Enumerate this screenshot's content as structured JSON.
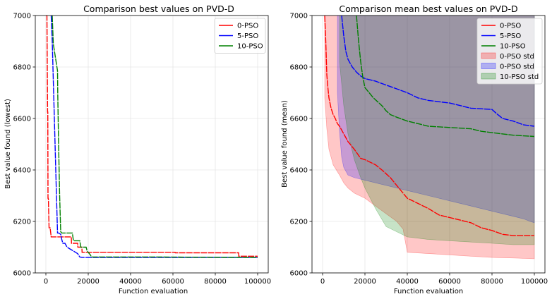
{
  "chart_data": [
    {
      "type": "line",
      "title": "Comparison best values on PVD-D",
      "xlabel": "Function evaluation",
      "ylabel": "Best value found (lowest)",
      "xlim": [
        -5000,
        105000
      ],
      "ylim": [
        6000,
        7000
      ],
      "xticks": [
        "0",
        "20000",
        "40000",
        "60000",
        "80000",
        "100000"
      ],
      "yticks": [
        "6000",
        "6200",
        "6400",
        "6600",
        "6800",
        "7000"
      ],
      "grid": true,
      "legend_position": "top-right",
      "series": [
        {
          "name": "0-PSO",
          "color": "#ff0000",
          "x": [
            0,
            500,
            800,
            900,
            1000,
            1100,
            1200,
            1500,
            2000,
            2500,
            12000,
            12100,
            15000,
            15100,
            17000,
            17100,
            61000,
            61100,
            91000,
            91100,
            100000
          ],
          "y": [
            7000,
            7000,
            6625,
            6625,
            6290,
            6290,
            6285,
            6175,
            6175,
            6140,
            6140,
            6115,
            6115,
            6100,
            6100,
            6080,
            6080,
            6078,
            6078,
            6065,
            6065
          ]
        },
        {
          "name": "5-PSO",
          "color": "#0000ff",
          "x": [
            2500,
            3000,
            3500,
            4000,
            4500,
            5000,
            5500,
            6000,
            7000,
            7500,
            8000,
            9000,
            10000,
            12000,
            14000,
            15000,
            16000,
            17000,
            18000,
            20000,
            30000,
            50000,
            60000,
            90000,
            98000,
            100000
          ],
          "y": [
            7000,
            6900,
            6750,
            6600,
            6450,
            6300,
            6155,
            6155,
            6150,
            6130,
            6115,
            6115,
            6100,
            6090,
            6080,
            6075,
            6062,
            6060,
            6060,
            6060,
            6060,
            6060,
            6060,
            6060,
            6060,
            6060
          ]
        },
        {
          "name": "10-PSO",
          "color": "#008000",
          "x": [
            3000,
            3500,
            5500,
            5600,
            6000,
            6500,
            7000,
            7500,
            12500,
            13000,
            16000,
            16500,
            19000,
            19500,
            21000,
            21500,
            50000,
            90000,
            100000
          ],
          "y": [
            7000,
            6890,
            6785,
            6700,
            6500,
            6300,
            6160,
            6155,
            6155,
            6125,
            6125,
            6100,
            6100,
            6085,
            6070,
            6062,
            6062,
            6060,
            6060
          ]
        }
      ]
    },
    {
      "type": "line",
      "title": "Comparison mean best values on PVD-D",
      "xlabel": "Function evaluation",
      "ylabel": "Best value found (mean)",
      "xlim": [
        -5000,
        105000
      ],
      "ylim": [
        6000,
        7000
      ],
      "xticks": [
        "0",
        "20000",
        "40000",
        "60000",
        "80000",
        "100000"
      ],
      "yticks": [
        "6000",
        "6200",
        "6400",
        "6600",
        "6800",
        "7000"
      ],
      "grid": true,
      "legend_position": "top-right",
      "series": [
        {
          "name": "0-PSO",
          "color": "#ff0000",
          "x": [
            1000,
            1500,
            2000,
            2500,
            3000,
            4000,
            5000,
            6000,
            7000,
            8000,
            10000,
            12000,
            15000,
            18000,
            20000,
            25000,
            28000,
            32000,
            35000,
            40000,
            45000,
            50000,
            55000,
            60000,
            70000,
            75000,
            80000,
            85000,
            90000,
            100000
          ],
          "y": [
            7000,
            6900,
            6770,
            6720,
            6680,
            6640,
            6615,
            6600,
            6580,
            6570,
            6540,
            6510,
            6480,
            6445,
            6440,
            6420,
            6400,
            6370,
            6340,
            6290,
            6270,
            6250,
            6225,
            6215,
            6195,
            6175,
            6165,
            6150,
            6145,
            6145
          ]
        },
        {
          "name": "5-PSO",
          "color": "#0000ff",
          "x": [
            9000,
            10000,
            11000,
            12000,
            14000,
            16000,
            18000,
            20000,
            25000,
            30000,
            35000,
            40000,
            45000,
            50000,
            55000,
            60000,
            70000,
            80000,
            82000,
            85000,
            90000,
            95000,
            100000
          ],
          "y": [
            7000,
            6920,
            6860,
            6830,
            6800,
            6780,
            6765,
            6755,
            6745,
            6730,
            6715,
            6700,
            6680,
            6670,
            6665,
            6660,
            6640,
            6635,
            6620,
            6600,
            6590,
            6575,
            6570
          ]
        },
        {
          "name": "10-PSO",
          "color": "#008000",
          "x": [
            16000,
            17000,
            18000,
            19000,
            20000,
            22000,
            24000,
            26000,
            28000,
            30000,
            32000,
            35000,
            40000,
            45000,
            50000,
            60000,
            70000,
            75000,
            80000,
            85000,
            90000,
            100000
          ],
          "y": [
            7000,
            6900,
            6820,
            6760,
            6720,
            6700,
            6680,
            6665,
            6650,
            6630,
            6615,
            6605,
            6590,
            6580,
            6570,
            6565,
            6560,
            6550,
            6545,
            6540,
            6535,
            6530
          ]
        }
      ],
      "std_bands": [
        {
          "name": "0-PSO std",
          "color": "#ff0000",
          "x": [
            1000,
            2000,
            3000,
            5000,
            8000,
            10000,
            12000,
            15000,
            20000,
            25000,
            30000,
            35000,
            38000,
            40000,
            50000,
            60000,
            70000,
            80000,
            90000,
            100000
          ],
          "upper": [
            7000,
            7000,
            7000,
            7000,
            7000,
            7000,
            7000,
            7000,
            7000,
            7000,
            7000,
            7000,
            7000,
            7000,
            7000,
            7000,
            7000,
            7000,
            7000,
            7000
          ],
          "lower": [
            6680,
            6560,
            6480,
            6420,
            6380,
            6350,
            6330,
            6310,
            6290,
            6260,
            6230,
            6200,
            6170,
            6080,
            6075,
            6070,
            6065,
            6060,
            6058,
            6055
          ]
        },
        {
          "name": "0-PSO std",
          "color": "#0000ff",
          "x": [
            7000,
            8000,
            9000,
            10000,
            12000,
            15000,
            20000,
            30000,
            40000,
            50000,
            60000,
            70000,
            80000,
            90000,
            95000,
            98000,
            100000
          ],
          "upper": [
            7000,
            7000,
            7000,
            7000,
            7000,
            7000,
            7000,
            7000,
            7000,
            7000,
            7000,
            7000,
            7000,
            7000,
            7000,
            7000,
            7000
          ],
          "lower": [
            6700,
            6550,
            6450,
            6410,
            6380,
            6370,
            6360,
            6340,
            6320,
            6300,
            6280,
            6260,
            6240,
            6220,
            6210,
            6200,
            6195
          ]
        },
        {
          "name": "10-PSO std",
          "color": "#008000",
          "x": [
            8000,
            10000,
            12000,
            15000,
            18000,
            20000,
            25000,
            30000,
            35000,
            40000,
            50000,
            60000,
            70000,
            80000,
            90000,
            100000
          ],
          "upper": [
            7000,
            7000,
            7000,
            7000,
            7000,
            7000,
            7000,
            7000,
            7000,
            7000,
            7000,
            7000,
            7000,
            7000,
            7000,
            7000
          ],
          "lower": [
            6820,
            6650,
            6540,
            6440,
            6370,
            6330,
            6250,
            6180,
            6160,
            6140,
            6130,
            6125,
            6120,
            6115,
            6110,
            6110
          ]
        }
      ]
    }
  ]
}
